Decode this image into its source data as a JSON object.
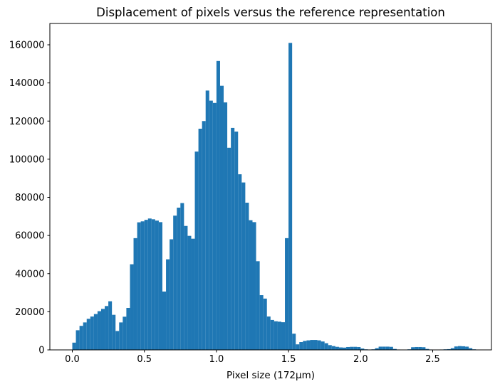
{
  "title": "Displacement of pixels versus the reference representation",
  "xlabel": "Pixel size (172μm)",
  "chart_data": {
    "type": "bar",
    "subtype": "histogram",
    "title": "Displacement of pixels versus the reference representation",
    "xlabel": "Pixel size (172μm)",
    "ylabel": "",
    "bar_color": "#1f77b4",
    "grid": false,
    "legend": null,
    "xlim": [
      -0.155,
      2.91
    ],
    "ylim": [
      0,
      171200
    ],
    "xticks": [
      0.0,
      0.5,
      1.0,
      1.5,
      2.0,
      2.5
    ],
    "yticks": [
      0,
      20000,
      40000,
      60000,
      80000,
      100000,
      120000,
      140000,
      160000
    ],
    "bin_start": 0.0,
    "bin_width": 0.025,
    "values": [
      3800,
      10300,
      12600,
      14400,
      16300,
      17500,
      18800,
      20300,
      21500,
      23000,
      25500,
      18400,
      9900,
      14400,
      17400,
      22000,
      44900,
      58600,
      66900,
      67400,
      68200,
      68900,
      68500,
      67800,
      67000,
      30600,
      47500,
      58000,
      70400,
      74600,
      77000,
      65000,
      59800,
      58300,
      104000,
      116000,
      120000,
      136000,
      130700,
      129500,
      151500,
      138500,
      129800,
      106000,
      116400,
      114500,
      92100,
      87800,
      77200,
      68000,
      67000,
      46500,
      28700,
      26900,
      17500,
      15700,
      15000,
      14800,
      14500,
      58600,
      161000,
      8500,
      2900,
      4100,
      4700,
      5000,
      5200,
      5200,
      5000,
      4400,
      3500,
      2500,
      2000,
      1600,
      1300,
      1200,
      1500,
      1600,
      1600,
      1500,
      700,
      300,
      200,
      300,
      900,
      1700,
      1700,
      1700,
      1600,
      500,
      200,
      150,
      150,
      300,
      1400,
      1500,
      1500,
      1400,
      500,
      200,
      150,
      150,
      200,
      300,
      400,
      900,
      1800,
      2000,
      1900,
      1700,
      900,
      300
    ]
  }
}
